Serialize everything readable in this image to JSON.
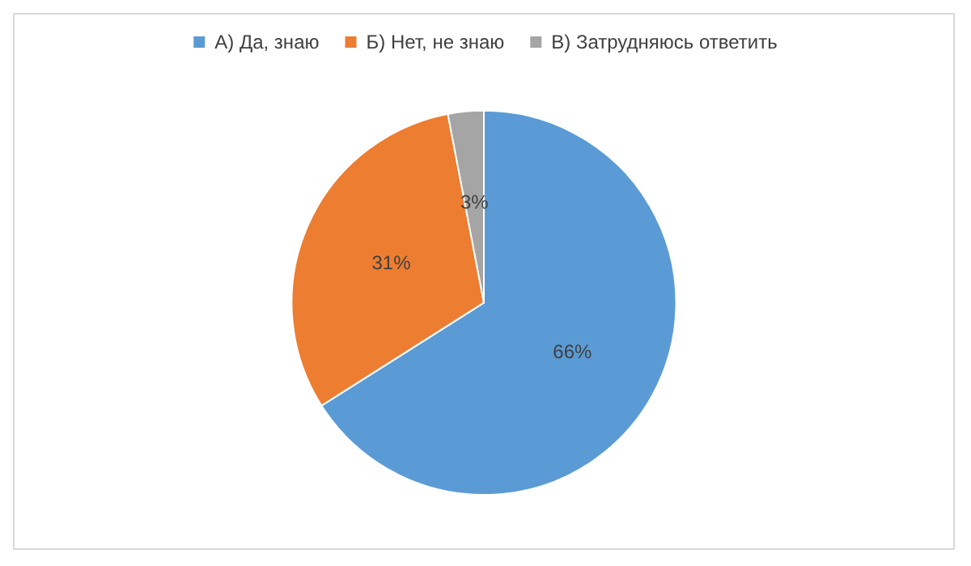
{
  "chart_data": {
    "type": "pie",
    "categories": [
      "А) Да, знаю",
      "Б) Нет, не знаю",
      "В) Затрудняюсь ответить"
    ],
    "values": [
      66,
      31,
      3
    ],
    "colors": [
      "#5b9bd5",
      "#ed7d31",
      "#a5a5a5"
    ],
    "value_labels": [
      "66%",
      "31%",
      "3%"
    ],
    "legend": "top"
  }
}
